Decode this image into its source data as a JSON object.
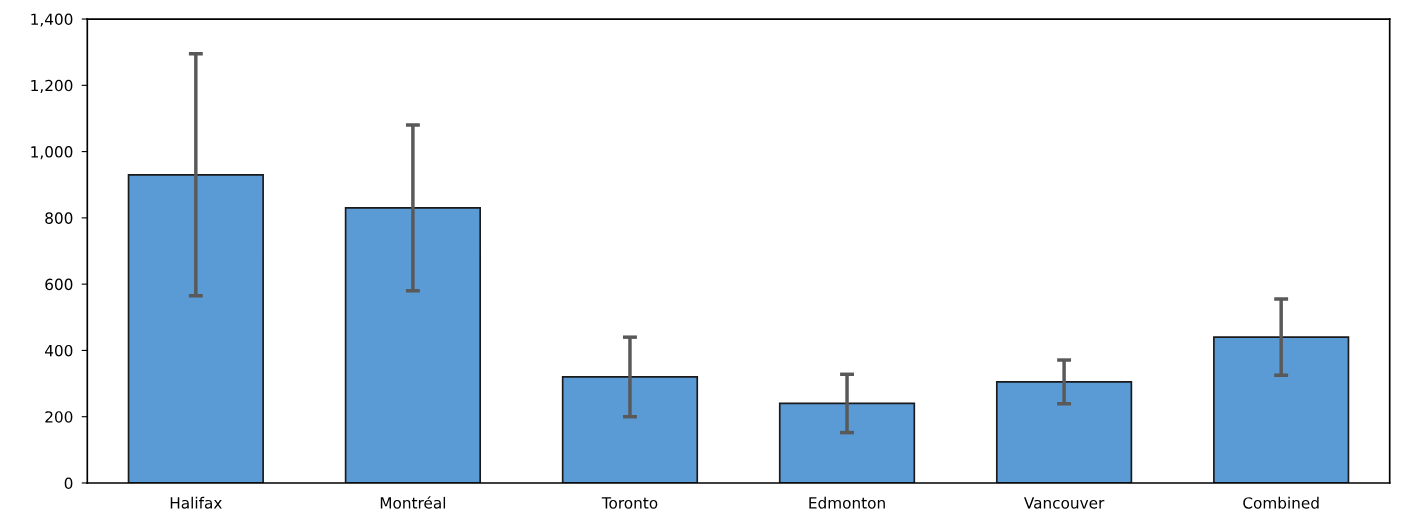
{
  "chart_data": {
    "type": "bar",
    "categories": [
      "Halifax",
      "Montréal",
      "Toronto",
      "Edmonton",
      "Vancouver",
      "Combined"
    ],
    "values": [
      930,
      830,
      320,
      240,
      305,
      440
    ],
    "errors": [
      365,
      250,
      120,
      88,
      66,
      115
    ],
    "color": "#5b9bd5",
    "ylim": [
      0,
      1400
    ],
    "yticks": [
      {
        "value": 0,
        "label": "0"
      },
      {
        "value": 200,
        "label": "200"
      },
      {
        "value": 400,
        "label": "400"
      },
      {
        "value": 600,
        "label": "600"
      },
      {
        "value": 800,
        "label": "800"
      },
      {
        "value": 1000,
        "label": "1,000"
      },
      {
        "value": 1200,
        "label": "1,200"
      },
      {
        "value": 1400,
        "label": "1,400"
      }
    ],
    "grid": false
  }
}
